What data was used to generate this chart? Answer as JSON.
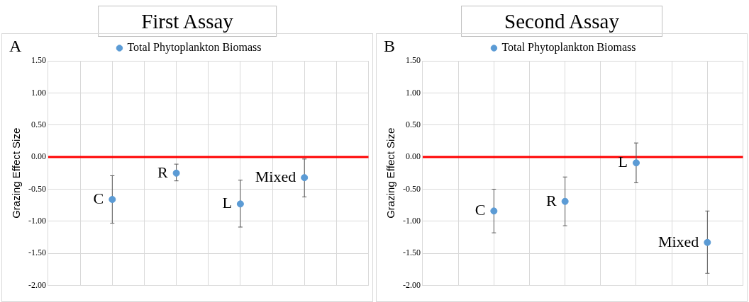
{
  "chart_data": [
    {
      "type": "scatter",
      "title": "First Assay",
      "ylabel": "Grazing Effect Size",
      "annotations": [
        "A",
        "C",
        "R",
        "L",
        "Mixed"
      ],
      "categories": [
        null,
        null,
        null,
        null,
        null,
        null,
        null,
        null,
        null,
        null,
        null
      ],
      "series": [
        {
          "name": "Total Phytoplankton Biomass",
          "color": "#5b9bd5",
          "values": [
            null,
            null,
            -0.66,
            null,
            -0.25,
            null,
            -0.73,
            null,
            -0.32,
            null,
            null
          ],
          "errors": [
            null,
            null,
            [
              -1.03,
              -0.29
            ],
            null,
            [
              -0.37,
              -0.11
            ],
            null,
            [
              -1.09,
              -0.36
            ],
            null,
            [
              -0.62,
              -0.03
            ],
            null,
            null
          ]
        }
      ],
      "ylim": [
        -2,
        1.5
      ],
      "yticks": [
        {
          "value": -2,
          "label": "-2.00"
        },
        {
          "value": -1.5,
          "label": "-1.50"
        },
        {
          "value": -1,
          "label": "-1.00"
        },
        {
          "value": -0.5,
          "label": "-0.50"
        },
        {
          "value": 0,
          "label": "0.00"
        },
        {
          "value": 0.5,
          "label": "0.50"
        },
        {
          "value": 1,
          "label": "1.00"
        },
        {
          "value": 1.5,
          "label": "1.50"
        }
      ],
      "ref_lines": [
        {
          "axis": "y",
          "value": 0,
          "color": "#ff0000"
        }
      ],
      "grid": true,
      "legend": "top",
      "marker": "circle"
    },
    {
      "type": "scatter",
      "title": "Second Assay",
      "ylabel": "Grazing Effect Size",
      "annotations": [
        "B",
        "C",
        "R",
        "L",
        "Mixed"
      ],
      "categories": [
        null,
        null,
        null,
        null,
        null,
        null,
        null,
        null,
        null,
        null
      ],
      "series": [
        {
          "name": "Total Phytoplankton Biomass",
          "color": "#5b9bd5",
          "values": [
            null,
            null,
            -0.84,
            null,
            -0.69,
            null,
            -0.09,
            null,
            -1.33,
            null
          ],
          "errors": [
            null,
            null,
            [
              -1.18,
              -0.5
            ],
            null,
            [
              -1.07,
              -0.31
            ],
            null,
            [
              -0.4,
              0.22
            ],
            null,
            [
              -1.81,
              -0.84
            ],
            null
          ]
        }
      ],
      "ylim": [
        -2,
        1.5
      ],
      "yticks": [
        {
          "value": -2,
          "label": "-2.00"
        },
        {
          "value": -1.5,
          "label": "-1.50"
        },
        {
          "value": -1,
          "label": "-1.00"
        },
        {
          "value": -0.5,
          "label": "-0.50"
        },
        {
          "value": 0,
          "label": "0.00"
        },
        {
          "value": 0.5,
          "label": "0.50"
        },
        {
          "value": 1,
          "label": "1.00"
        },
        {
          "value": 1.5,
          "label": "1.50"
        }
      ],
      "ref_lines": [
        {
          "axis": "y",
          "value": 0,
          "color": "#ff0000"
        }
      ],
      "grid": true,
      "legend": "top",
      "marker": "circle"
    }
  ]
}
